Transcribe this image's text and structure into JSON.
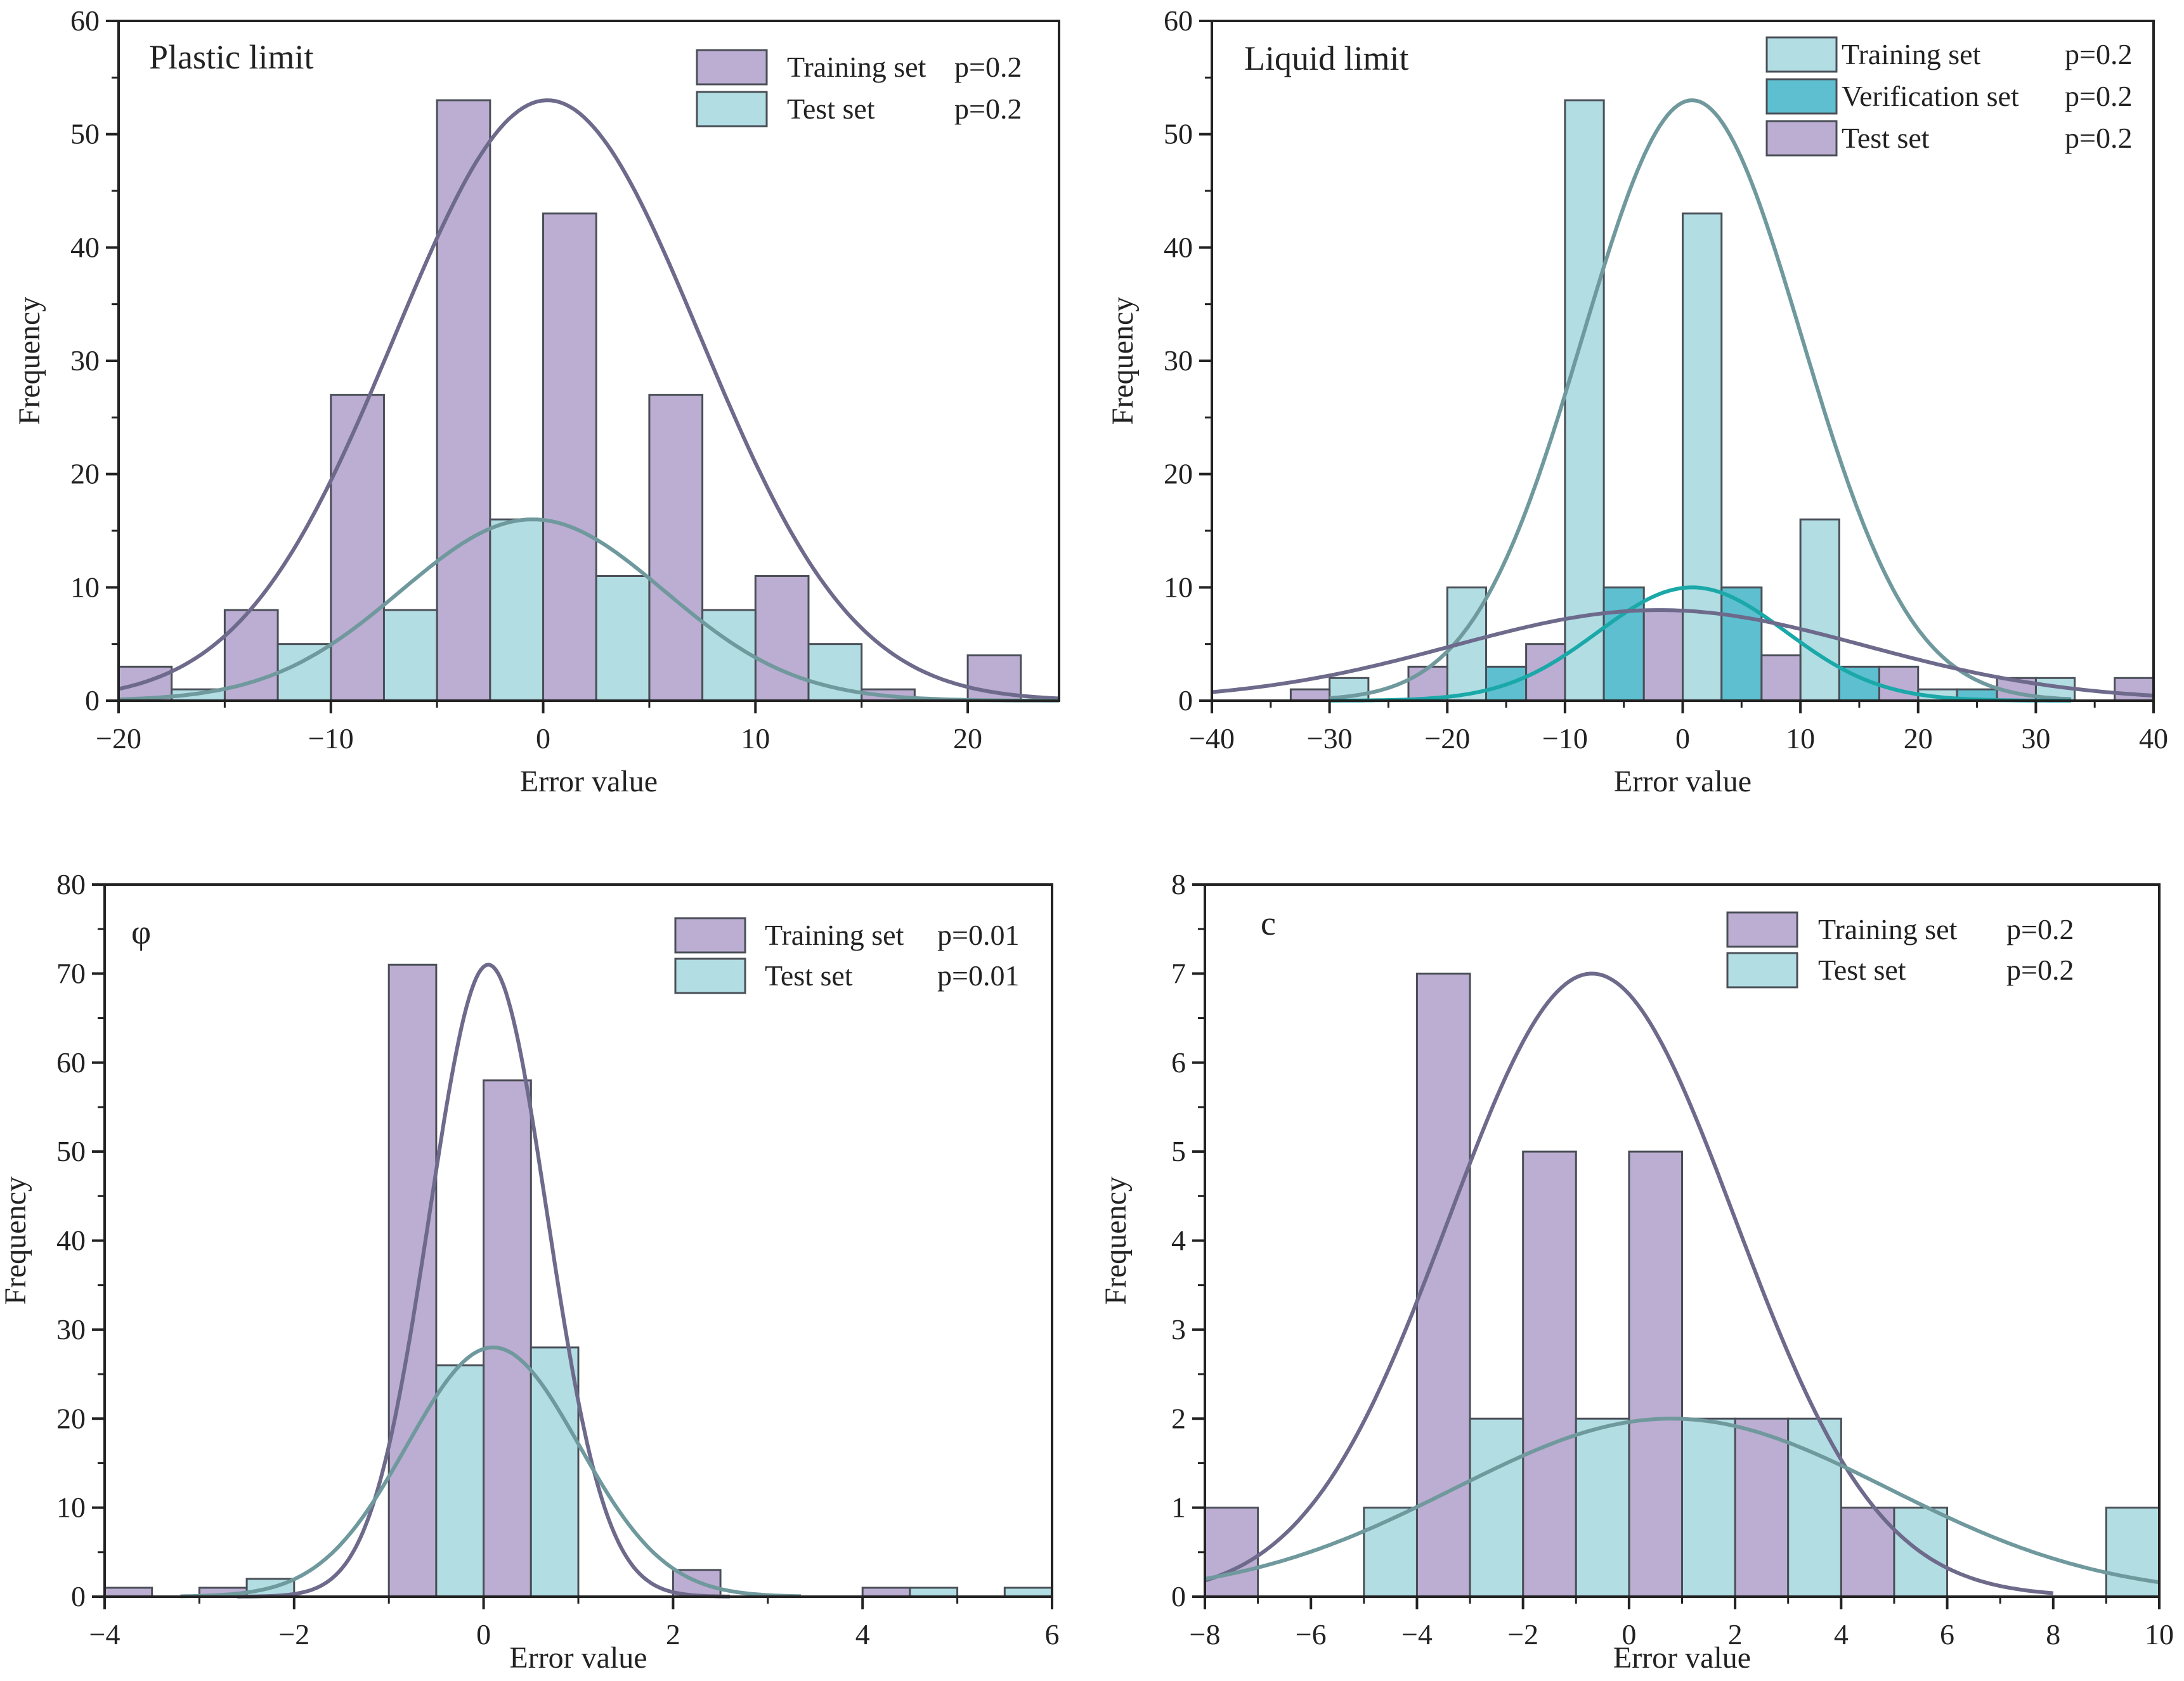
{
  "colors": {
    "purple_bar": "#bcadd2",
    "cyan_bar": "#b1dde3",
    "verification_bar": "#5dbfd0",
    "purple_curve": "#6d6a8b",
    "cyan_curve": "#6f999d",
    "verification_curve": "#1aa8a8",
    "bar_edge": "#4a4f57"
  },
  "chart_data": [
    {
      "type": "bar",
      "title": "Plastic limit",
      "xlabel": "Error value",
      "ylabel": "Frequency",
      "xlim": [
        -20,
        24.3
      ],
      "ylim": [
        0,
        60
      ],
      "xticks": [
        -20,
        -10,
        0,
        10,
        20
      ],
      "xtick_labels": [
        "−20",
        "−10",
        "0",
        "10",
        "20"
      ],
      "yticks": [
        0,
        10,
        20,
        30,
        40,
        50,
        60
      ],
      "ytick_labels": [
        "0",
        "10",
        "20",
        "30",
        "40",
        "50",
        "60"
      ],
      "grid": false,
      "legend_placement": "top-right",
      "series": [
        {
          "name": "Training set",
          "p": "p=0.2",
          "color": "purple_bar",
          "curve_color": "purple_curve",
          "bins": [
            [
              -20,
              -17.5,
              3
            ],
            [
              -15,
              -12.5,
              8
            ],
            [
              -10,
              -7.5,
              27
            ],
            [
              -5,
              -2.5,
              53
            ],
            [
              0,
              2.5,
              43
            ],
            [
              5,
              7.5,
              27
            ],
            [
              10,
              12.5,
              11
            ],
            [
              15,
              17.5,
              1
            ],
            [
              20,
              22.5,
              4
            ]
          ],
          "fit": {
            "mean": 0.2,
            "sd": 7.2,
            "peak": 53,
            "range": [
              -20,
              24.3
            ]
          }
        },
        {
          "name": "Test set",
          "p": "p=0.2",
          "color": "cyan_bar",
          "curve_color": "cyan_curve",
          "bins": [
            [
              -17.5,
              -15,
              1
            ],
            [
              -12.5,
              -10,
              5
            ],
            [
              -7.5,
              -5,
              8
            ],
            [
              -2.5,
              0,
              16
            ],
            [
              2.5,
              5,
              11
            ],
            [
              7.5,
              10,
              8
            ],
            [
              12.5,
              15,
              5
            ]
          ],
          "fit": {
            "mean": -0.5,
            "sd": 6.2,
            "peak": 16,
            "range": [
              -20,
              24.3
            ]
          }
        }
      ]
    },
    {
      "type": "bar",
      "title": "Liquid limit",
      "xlabel": "Error value",
      "ylabel": "Frequency",
      "xlim": [
        -40,
        40
      ],
      "ylim": [
        0,
        60
      ],
      "xticks": [
        -40,
        -30,
        -20,
        -10,
        0,
        10,
        20,
        30,
        40
      ],
      "xtick_labels": [
        "−40",
        "−30",
        "−20",
        "−10",
        "0",
        "10",
        "20",
        "30",
        "40"
      ],
      "yticks": [
        0,
        10,
        20,
        30,
        40,
        50,
        60
      ],
      "ytick_labels": [
        "0",
        "10",
        "20",
        "30",
        "40",
        "50",
        "60"
      ],
      "grid": false,
      "legend_placement": "top-right",
      "series": [
        {
          "name": "Training set",
          "p": "p=0.2",
          "color": "cyan_bar",
          "curve_color": "cyan_curve",
          "bins": [
            [
              -30,
              -26.7,
              2
            ],
            [
              -20,
              -16.7,
              10
            ],
            [
              -10,
              -6.7,
              53
            ],
            [
              0,
              3.3,
              43
            ],
            [
              10,
              13.3,
              16
            ],
            [
              20,
              23.3,
              1
            ],
            [
              30,
              33.3,
              2
            ]
          ],
          "fit": {
            "mean": 0.8,
            "sd": 9.3,
            "peak": 53,
            "range": [
              -30,
              33
            ]
          }
        },
        {
          "name": "Verification set",
          "p": "p=0.2",
          "color": "verification_bar",
          "curve_color": "verification_curve",
          "bins": [
            [
              -16.7,
              -13.3,
              3
            ],
            [
              -6.7,
              -3.3,
              10
            ],
            [
              3.3,
              6.7,
              10
            ],
            [
              13.3,
              16.7,
              3
            ],
            [
              23.3,
              26.7,
              1
            ]
          ],
          "fit": {
            "mean": 0.8,
            "sd": 8.0,
            "peak": 10,
            "range": [
              -30,
              33
            ]
          }
        },
        {
          "name": "Test set",
          "p": "p=0.2",
          "color": "purple_bar",
          "curve_color": "purple_curve",
          "bins": [
            [
              -33.3,
              -30,
              1
            ],
            [
              -23.3,
              -20,
              3
            ],
            [
              -13.3,
              -10,
              5
            ],
            [
              -3.3,
              0,
              8
            ],
            [
              6.7,
              10,
              4
            ],
            [
              16.7,
              20,
              3
            ],
            [
              26.7,
              30,
              2
            ],
            [
              36.7,
              40,
              2
            ]
          ],
          "fit": {
            "mean": -2,
            "sd": 17.5,
            "peak": 8,
            "range": [
              -40,
              40
            ]
          }
        }
      ]
    },
    {
      "type": "bar",
      "title": "φ",
      "xlabel": "Error value",
      "ylabel": "Frequency",
      "xlim": [
        -4,
        6
      ],
      "ylim": [
        0,
        80
      ],
      "xticks": [
        -4,
        -2,
        0,
        2,
        4,
        6
      ],
      "xtick_labels": [
        "−4",
        "−2",
        "0",
        "2",
        "4",
        "6"
      ],
      "yticks": [
        0,
        10,
        20,
        30,
        40,
        50,
        60,
        70,
        80
      ],
      "ytick_labels": [
        "0",
        "10",
        "20",
        "30",
        "40",
        "50",
        "60",
        "70",
        "80"
      ],
      "grid": false,
      "legend_placement": "top-right",
      "series": [
        {
          "name": "Training set",
          "p": "p=0.01",
          "color": "purple_bar",
          "curve_color": "purple_curve",
          "bins": [
            [
              -4,
              -3.5,
              1
            ],
            [
              -3,
              -2.5,
              1
            ],
            [
              -1,
              -0.5,
              71
            ],
            [
              0,
              0.5,
              58
            ],
            [
              2,
              2.5,
              3
            ],
            [
              4,
              4.5,
              1
            ]
          ],
          "fit": {
            "mean": 0.05,
            "sd": 0.62,
            "peak": 71,
            "range": [
              -2.6,
              2.6
            ]
          }
        },
        {
          "name": "Test set",
          "p": "p=0.01",
          "color": "cyan_bar",
          "curve_color": "cyan_curve",
          "bins": [
            [
              -2.5,
              -2,
              2
            ],
            [
              -0.5,
              0,
              26
            ],
            [
              0.5,
              1,
              28
            ],
            [
              4.5,
              5,
              1
            ],
            [
              5.5,
              6,
              1
            ]
          ],
          "fit": {
            "mean": 0.1,
            "sd": 0.91,
            "peak": 28,
            "range": [
              -3.2,
              3.35
            ]
          }
        }
      ]
    },
    {
      "type": "bar",
      "title": "c",
      "xlabel": "Error value",
      "ylabel": "Frequency",
      "xlim": [
        -8,
        10
      ],
      "ylim": [
        0,
        8
      ],
      "xticks": [
        -8,
        -6,
        -4,
        -2,
        0,
        2,
        4,
        6,
        8,
        10
      ],
      "xtick_labels": [
        "−8",
        "−6",
        "−4",
        "−2",
        "0",
        "2",
        "4",
        "6",
        "8",
        "10"
      ],
      "yticks": [
        0,
        1,
        2,
        3,
        4,
        5,
        6,
        7,
        8
      ],
      "ytick_labels": [
        "0",
        "1",
        "2",
        "3",
        "4",
        "5",
        "6",
        "7",
        "8"
      ],
      "grid": false,
      "legend_placement": "top-right",
      "series": [
        {
          "name": "Training set",
          "p": "p=0.2",
          "color": "purple_bar",
          "curve_color": "purple_curve",
          "bins": [
            [
              -8,
              -7,
              1
            ],
            [
              -4,
              -3,
              7
            ],
            [
              -2,
              -1,
              5
            ],
            [
              0,
              1,
              5
            ],
            [
              2,
              3,
              2
            ],
            [
              4,
              5,
              1
            ]
          ],
          "fit": {
            "mean": -0.7,
            "sd": 2.7,
            "peak": 7,
            "range": [
              -8,
              8
            ]
          }
        },
        {
          "name": "Test set",
          "p": "p=0.2",
          "color": "cyan_bar",
          "curve_color": "cyan_curve",
          "bins": [
            [
              -5,
              -4,
              1
            ],
            [
              -3,
              -2,
              2
            ],
            [
              -1,
              0,
              2
            ],
            [
              1,
              2,
              2
            ],
            [
              3,
              4,
              2
            ],
            [
              5,
              6,
              1
            ],
            [
              9,
              10,
              1
            ]
          ],
          "fit": {
            "mean": 0.8,
            "sd": 4.1,
            "peak": 2,
            "range": [
              -8,
              10
            ]
          }
        }
      ]
    }
  ]
}
